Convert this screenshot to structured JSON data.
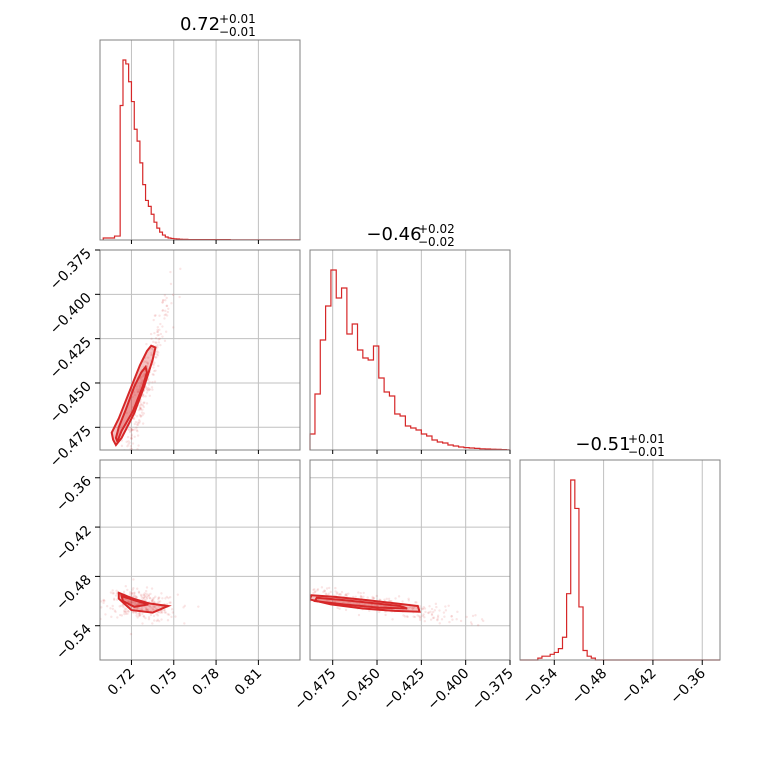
{
  "chart_data": {
    "type": "corner",
    "color": "#d62728",
    "params": [
      {
        "label": "",
        "median": 0.72,
        "err_plus": 0.01,
        "err_minus": 0.01,
        "title_main": "0.72",
        "title_plus": "+0.01",
        "title_minus": "−0.01"
      },
      {
        "label": "",
        "median": -0.46,
        "err_plus": 0.02,
        "err_minus": 0.02,
        "title_main": "−0.46",
        "title_plus": "+0.02",
        "title_minus": "−0.02"
      },
      {
        "label": "",
        "median": -0.51,
        "err_plus": 0.01,
        "err_minus": 0.01,
        "title_main": "−0.51",
        "title_plus": "+0.01",
        "title_minus": "−0.01"
      }
    ],
    "axes": [
      {
        "range": [
          0.6977,
          0.8395
        ],
        "ticks": [
          0.72,
          0.75,
          0.78,
          0.81
        ],
        "tick_labels": [
          "0.72",
          "0.75",
          "0.78",
          "0.81"
        ]
      },
      {
        "range": [
          -0.4878,
          -0.375
        ],
        "ticks": [
          -0.475,
          -0.45,
          -0.425,
          -0.4,
          -0.375
        ],
        "tick_labels": [
          "−0.475",
          "−0.450",
          "−0.425",
          "−0.400",
          "−0.375"
        ]
      },
      {
        "range": [
          -0.5817,
          -0.3384
        ],
        "ticks": [
          -0.54,
          -0.48,
          -0.42,
          -0.36
        ],
        "tick_labels": [
          "−0.54",
          "−0.48",
          "−0.42",
          "−0.36"
        ]
      }
    ],
    "hist1d": [
      {
        "bin_edges": [
          0.7,
          0.702,
          0.704,
          0.706,
          0.708,
          0.71,
          0.712,
          0.714,
          0.716,
          0.718,
          0.72,
          0.722,
          0.724,
          0.726,
          0.728,
          0.73,
          0.732,
          0.734,
          0.736,
          0.738,
          0.74,
          0.742,
          0.744,
          0.746,
          0.748,
          0.75,
          0.752,
          0.754,
          0.756,
          0.758,
          0.76,
          0.765,
          0.77,
          0.78,
          0.79,
          0.8,
          0.81,
          0.82,
          0.83,
          0.8395
        ],
        "counts": [
          0.01,
          0.01,
          0.01,
          0.01,
          0.02,
          0.02,
          0.68,
          0.91,
          0.89,
          0.8,
          0.7,
          0.56,
          0.5,
          0.39,
          0.28,
          0.2,
          0.17,
          0.13,
          0.09,
          0.06,
          0.04,
          0.025,
          0.015,
          0.01,
          0.008,
          0.006,
          0.005,
          0.004,
          0.003,
          0.003,
          0.002,
          0.002,
          0.002,
          0.002,
          0.001,
          0.001,
          0.001,
          0.001,
          0.001
        ]
      },
      {
        "bin_edges": [
          -0.4878,
          -0.485,
          -0.482,
          -0.479,
          -0.476,
          -0.473,
          -0.47,
          -0.467,
          -0.464,
          -0.461,
          -0.458,
          -0.455,
          -0.452,
          -0.449,
          -0.446,
          -0.443,
          -0.44,
          -0.437,
          -0.434,
          -0.431,
          -0.428,
          -0.425,
          -0.422,
          -0.419,
          -0.416,
          -0.413,
          -0.41,
          -0.407,
          -0.404,
          -0.401,
          -0.398,
          -0.395,
          -0.392,
          -0.389,
          -0.386,
          -0.383,
          -0.38,
          -0.377,
          -0.375
        ],
        "counts": [
          0.08,
          0.28,
          0.55,
          0.72,
          0.9,
          0.76,
          0.81,
          0.58,
          0.63,
          0.5,
          0.46,
          0.45,
          0.52,
          0.36,
          0.29,
          0.27,
          0.18,
          0.17,
          0.12,
          0.11,
          0.1,
          0.08,
          0.07,
          0.05,
          0.04,
          0.035,
          0.025,
          0.02,
          0.015,
          0.012,
          0.01,
          0.008,
          0.006,
          0.005,
          0.004,
          0.003,
          0.002,
          0.001
        ]
      },
      {
        "bin_edges": [
          -0.5817,
          -0.57,
          -0.56,
          -0.555,
          -0.55,
          -0.545,
          -0.54,
          -0.535,
          -0.53,
          -0.525,
          -0.52,
          -0.515,
          -0.51,
          -0.505,
          -0.5,
          -0.495,
          -0.49,
          -0.485,
          -0.48,
          -0.47,
          -0.46,
          -0.44,
          -0.42,
          -0.4,
          -0.38,
          -0.3384
        ],
        "counts": [
          0,
          0,
          0.01,
          0.02,
          0.02,
          0.03,
          0.04,
          0.06,
          0.12,
          0.35,
          0.95,
          0.8,
          0.28,
          0.05,
          0.02,
          0.01,
          0,
          0,
          0,
          0,
          0,
          0,
          0,
          0,
          0
        ]
      }
    ],
    "pairs": [
      {
        "x_param": 0,
        "y_param": 1,
        "center": [
          0.728,
          -0.455
        ],
        "spread": [
          0.006,
          0.017
        ],
        "corr": 0.95,
        "contour_outer": [
          [
            0.707,
            -0.482
          ],
          [
            0.706,
            -0.478
          ],
          [
            0.711,
            -0.47
          ],
          [
            0.719,
            -0.454
          ],
          [
            0.726,
            -0.44
          ],
          [
            0.731,
            -0.432
          ],
          [
            0.734,
            -0.429
          ],
          [
            0.737,
            -0.43
          ],
          [
            0.735,
            -0.437
          ],
          [
            0.729,
            -0.452
          ],
          [
            0.722,
            -0.467
          ],
          [
            0.713,
            -0.481
          ],
          [
            0.709,
            -0.485
          ]
        ],
        "contour_inner": [
          [
            0.709,
            -0.481
          ],
          [
            0.711,
            -0.475
          ],
          [
            0.716,
            -0.465
          ],
          [
            0.722,
            -0.452
          ],
          [
            0.727,
            -0.444
          ],
          [
            0.73,
            -0.441
          ],
          [
            0.731,
            -0.444
          ],
          [
            0.728,
            -0.452
          ],
          [
            0.721,
            -0.466
          ],
          [
            0.713,
            -0.477
          ],
          [
            0.71,
            -0.483
          ]
        ],
        "points": 320
      },
      {
        "x_param": 0,
        "y_param": 2,
        "center": [
          0.727,
          -0.515
        ],
        "spread": [
          0.008,
          0.006
        ],
        "corr": -0.3,
        "contour_outer": [
          [
            0.711,
            -0.5
          ],
          [
            0.721,
            -0.507
          ],
          [
            0.733,
            -0.513
          ],
          [
            0.746,
            -0.516
          ],
          [
            0.735,
            -0.524
          ],
          [
            0.72,
            -0.521
          ],
          [
            0.711,
            -0.507
          ],
          [
            0.711,
            -0.5
          ]
        ],
        "contour_inner": [
          [
            0.713,
            -0.504
          ],
          [
            0.722,
            -0.509
          ],
          [
            0.732,
            -0.514
          ],
          [
            0.722,
            -0.517
          ],
          [
            0.714,
            -0.51
          ],
          [
            0.713,
            -0.504
          ]
        ],
        "points": 320
      },
      {
        "x_param": 1,
        "y_param": 2,
        "center": [
          -0.455,
          -0.512
        ],
        "spread": [
          0.017,
          0.007
        ],
        "corr": -0.85,
        "contour_outer": [
          [
            -0.487,
            -0.503
          ],
          [
            -0.473,
            -0.505
          ],
          [
            -0.455,
            -0.509
          ],
          [
            -0.439,
            -0.513
          ],
          [
            -0.427,
            -0.516
          ],
          [
            -0.426,
            -0.523
          ],
          [
            -0.44,
            -0.522
          ],
          [
            -0.458,
            -0.519
          ],
          [
            -0.476,
            -0.514
          ],
          [
            -0.488,
            -0.508
          ],
          [
            -0.487,
            -0.503
          ]
        ],
        "contour_inner": [
          [
            -0.484,
            -0.506
          ],
          [
            -0.468,
            -0.509
          ],
          [
            -0.45,
            -0.513
          ],
          [
            -0.437,
            -0.516
          ],
          [
            -0.433,
            -0.519
          ],
          [
            -0.449,
            -0.518
          ],
          [
            -0.469,
            -0.514
          ],
          [
            -0.485,
            -0.51
          ],
          [
            -0.484,
            -0.506
          ]
        ],
        "points": 320
      }
    ],
    "grid": true,
    "legend": "none"
  }
}
